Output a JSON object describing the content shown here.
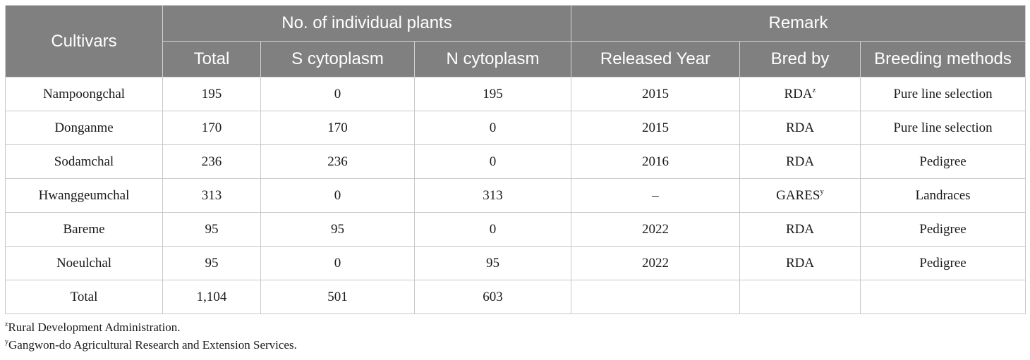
{
  "header": {
    "cultivars": "Cultivars",
    "group_plants": "No. of individual plants",
    "group_remark": "Remark",
    "total": "Total",
    "s_cytoplasm": "S cytoplasm",
    "n_cytoplasm": "N cytoplasm",
    "released_year": "Released Year",
    "bred_by": "Bred by",
    "breeding_methods": "Breeding methods"
  },
  "rows": [
    {
      "cultivar": "Nampoongchal",
      "total": "195",
      "s": "0",
      "n": "195",
      "year": "2015",
      "bred_by": "RDA",
      "bred_sup": "z",
      "method": "Pure line selection"
    },
    {
      "cultivar": "Donganme",
      "total": "170",
      "s": "170",
      "n": "0",
      "year": "2015",
      "bred_by": "RDA",
      "bred_sup": "",
      "method": "Pure line selection"
    },
    {
      "cultivar": "Sodamchal",
      "total": "236",
      "s": "236",
      "n": "0",
      "year": "2016",
      "bred_by": "RDA",
      "bred_sup": "",
      "method": "Pedigree"
    },
    {
      "cultivar": "Hwanggeumchal",
      "total": "313",
      "s": "0",
      "n": "313",
      "year": "–",
      "bred_by": "GARES",
      "bred_sup": "y",
      "method": "Landraces"
    },
    {
      "cultivar": "Bareme",
      "total": "95",
      "s": "95",
      "n": "0",
      "year": "2022",
      "bred_by": "RDA",
      "bred_sup": "",
      "method": "Pedigree"
    },
    {
      "cultivar": "Noeulchal",
      "total": "95",
      "s": "0",
      "n": "95",
      "year": "2022",
      "bred_by": "RDA",
      "bred_sup": "",
      "method": "Pedigree"
    }
  ],
  "total_row": {
    "label": "Total",
    "total": "1,104",
    "s": "501",
    "n": "603",
    "year": "",
    "bred_by": "",
    "method": ""
  },
  "footnotes": [
    {
      "mark": "z",
      "text": "Rural Development Administration."
    },
    {
      "mark": "y",
      "text": "Gangwon-do Agricultural Research and Extension Services."
    }
  ]
}
